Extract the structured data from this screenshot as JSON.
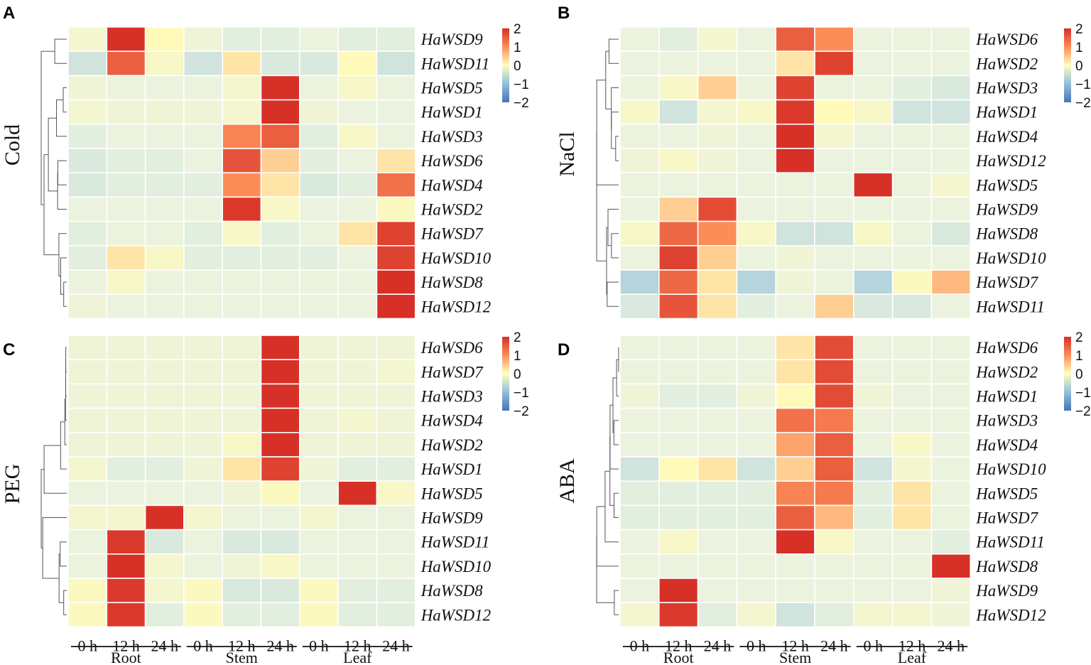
{
  "chart_data": [
    {
      "type": "heatmap",
      "panel": "A",
      "condition": "Cold",
      "rows": [
        "HaWSD9",
        "HaWSD11",
        "HaWSD5",
        "HaWSD1",
        "HaWSD3",
        "HaWSD6",
        "HaWSD4",
        "HaWSD2",
        "HaWSD7",
        "HaWSD10",
        "HaWSD8",
        "HaWSD12"
      ],
      "columns": [
        "0 h",
        "12 h",
        "24 h",
        "0 h",
        "12 h",
        "24 h",
        "0 h",
        "12 h",
        "24 h"
      ],
      "groups": [
        "Root",
        "Stem",
        "Leaf"
      ],
      "colorbar": {
        "ticks": [
          "2",
          "1",
          "0",
          "−1",
          "−2"
        ],
        "range": [
          -2,
          2
        ]
      },
      "values": [
        [
          0.2,
          2.0,
          0.5,
          0.1,
          -0.1,
          -0.1,
          0.0,
          -0.1,
          -0.1
        ],
        [
          -0.3,
          1.5,
          0.3,
          -0.3,
          0.6,
          -0.2,
          -0.2,
          0.5,
          -0.3
        ],
        [
          0.1,
          0.0,
          0.0,
          0.0,
          0.2,
          2.0,
          0.0,
          0.3,
          0.0
        ],
        [
          0.2,
          0.1,
          0.1,
          0.1,
          0.2,
          2.0,
          0.1,
          0.0,
          0.0
        ],
        [
          -0.1,
          0.0,
          0.0,
          0.0,
          1.1,
          1.5,
          -0.1,
          0.3,
          0.0
        ],
        [
          -0.2,
          -0.1,
          -0.1,
          0.0,
          1.6,
          0.7,
          -0.1,
          0.0,
          0.6
        ],
        [
          -0.2,
          -0.1,
          -0.1,
          -0.1,
          1.0,
          0.6,
          -0.2,
          -0.1,
          1.3
        ],
        [
          0.0,
          0.0,
          0.0,
          0.0,
          1.9,
          0.3,
          0.0,
          0.0,
          0.4
        ],
        [
          -0.1,
          0.0,
          0.0,
          -0.1,
          0.3,
          -0.1,
          0.0,
          0.6,
          1.8
        ],
        [
          -0.1,
          0.6,
          0.3,
          -0.1,
          -0.1,
          -0.1,
          -0.1,
          0.0,
          1.8
        ],
        [
          0.0,
          0.3,
          0.0,
          0.0,
          0.0,
          0.0,
          0.0,
          0.0,
          2.0
        ],
        [
          0.1,
          0.0,
          0.0,
          0.0,
          0.0,
          0.0,
          0.0,
          0.0,
          2.0
        ]
      ]
    },
    {
      "type": "heatmap",
      "panel": "B",
      "condition": "NaCl",
      "rows": [
        "HaWSD6",
        "HaWSD2",
        "HaWSD3",
        "HaWSD1",
        "HaWSD4",
        "HaWSD12",
        "HaWSD5",
        "HaWSD9",
        "HaWSD8",
        "HaWSD10",
        "HaWSD7",
        "HaWSD11"
      ],
      "columns": [
        "0 h",
        "12 h",
        "24 h",
        "0 h",
        "12 h",
        "24 h",
        "0 h",
        "12 h",
        "24 h"
      ],
      "groups": [
        "Root",
        "Stem",
        "Leaf"
      ],
      "colorbar": {
        "ticks": [
          "2",
          "1",
          "0",
          "−1",
          "−2"
        ],
        "range": [
          -2,
          2
        ]
      },
      "values": [
        [
          0.0,
          -0.1,
          0.2,
          0.0,
          1.5,
          1.0,
          0.0,
          0.0,
          0.0
        ],
        [
          0.0,
          0.0,
          0.0,
          0.0,
          0.6,
          1.8,
          0.0,
          0.0,
          0.0
        ],
        [
          0.0,
          0.3,
          0.7,
          0.0,
          1.8,
          0.0,
          0.0,
          -0.1,
          -0.2
        ],
        [
          0.3,
          -0.3,
          0.2,
          0.3,
          1.9,
          0.5,
          0.3,
          -0.3,
          -0.3
        ],
        [
          0.0,
          0.0,
          0.1,
          0.0,
          2.0,
          0.2,
          0.0,
          0.0,
          0.0
        ],
        [
          0.1,
          0.3,
          0.1,
          0.0,
          2.0,
          0.0,
          0.0,
          0.0,
          0.0
        ],
        [
          0.0,
          0.0,
          0.0,
          0.0,
          0.0,
          0.0,
          2.0,
          0.0,
          0.2
        ],
        [
          0.0,
          0.7,
          1.7,
          0.0,
          0.0,
          0.0,
          0.0,
          0.0,
          0.0
        ],
        [
          0.3,
          1.4,
          1.0,
          0.3,
          -0.3,
          -0.3,
          0.3,
          0.0,
          -0.2
        ],
        [
          0.0,
          1.8,
          0.7,
          0.0,
          0.1,
          0.0,
          0.0,
          0.0,
          0.0
        ],
        [
          -0.6,
          1.4,
          0.6,
          -0.6,
          0.1,
          0.0,
          -0.6,
          0.4,
          0.8
        ],
        [
          -0.2,
          1.6,
          0.6,
          -0.1,
          0.0,
          0.7,
          -0.2,
          -0.2,
          0.0
        ]
      ]
    },
    {
      "type": "heatmap",
      "panel": "C",
      "condition": "PEG",
      "rows": [
        "HaWSD6",
        "HaWSD7",
        "HaWSD3",
        "HaWSD4",
        "HaWSD2",
        "HaWSD1",
        "HaWSD5",
        "HaWSD9",
        "HaWSD11",
        "HaWSD10",
        "HaWSD8",
        "HaWSD12"
      ],
      "columns": [
        "0 h",
        "12 h",
        "24 h",
        "0 h",
        "12 h",
        "24 h",
        "0 h",
        "12 h",
        "24 h"
      ],
      "groups": [
        "Root",
        "Stem",
        "Leaf"
      ],
      "colorbar": {
        "ticks": [
          "2",
          "1",
          "0",
          "−1",
          "−2"
        ],
        "range": [
          -2,
          2
        ]
      },
      "values": [
        [
          0.1,
          0.1,
          0.1,
          0.1,
          0.1,
          2.0,
          0.1,
          0.1,
          0.1
        ],
        [
          0.1,
          0.1,
          0.1,
          0.1,
          0.1,
          2.0,
          0.1,
          0.1,
          0.2
        ],
        [
          0.1,
          0.1,
          0.1,
          0.1,
          0.1,
          2.0,
          0.1,
          0.1,
          0.1
        ],
        [
          0.1,
          0.1,
          0.1,
          0.1,
          0.1,
          2.0,
          0.1,
          0.2,
          0.1
        ],
        [
          0.1,
          0.1,
          0.1,
          0.1,
          0.3,
          2.0,
          0.1,
          0.1,
          0.1
        ],
        [
          0.2,
          -0.1,
          -0.1,
          0.1,
          0.6,
          1.8,
          0.1,
          -0.1,
          -0.1
        ],
        [
          0.0,
          0.0,
          0.0,
          0.0,
          0.1,
          0.4,
          0.0,
          2.0,
          0.3
        ],
        [
          0.2,
          0.2,
          2.0,
          0.2,
          0.0,
          0.0,
          0.2,
          0.0,
          0.0
        ],
        [
          0.0,
          1.9,
          -0.2,
          0.0,
          -0.2,
          -0.2,
          0.0,
          0.0,
          0.0
        ],
        [
          0.0,
          2.0,
          0.2,
          0.0,
          0.1,
          0.3,
          0.0,
          0.0,
          0.0
        ],
        [
          0.4,
          1.9,
          0.2,
          0.4,
          -0.2,
          -0.2,
          0.4,
          -0.1,
          -0.1
        ],
        [
          0.4,
          1.9,
          -0.1,
          0.4,
          -0.1,
          -0.1,
          0.4,
          -0.1,
          -0.1
        ]
      ]
    },
    {
      "type": "heatmap",
      "panel": "D",
      "condition": "ABA",
      "rows": [
        "HaWSD6",
        "HaWSD2",
        "HaWSD1",
        "HaWSD3",
        "HaWSD4",
        "HaWSD10",
        "HaWSD5",
        "HaWSD7",
        "HaWSD11",
        "HaWSD8",
        "HaWSD9",
        "HaWSD12"
      ],
      "columns": [
        "0 h",
        "12 h",
        "24 h",
        "0 h",
        "12 h",
        "24 h",
        "0 h",
        "12 h",
        "24 h"
      ],
      "groups": [
        "Root",
        "Stem",
        "Leaf"
      ],
      "colorbar": {
        "ticks": [
          "2",
          "1",
          "0",
          "−1",
          "−2"
        ],
        "range": [
          -2,
          2
        ]
      },
      "values": [
        [
          0.0,
          0.0,
          0.0,
          0.0,
          0.6,
          1.7,
          0.0,
          0.0,
          0.0
        ],
        [
          0.0,
          0.0,
          0.0,
          0.0,
          0.6,
          1.7,
          0.0,
          0.0,
          0.0
        ],
        [
          0.1,
          -0.1,
          -0.1,
          0.1,
          0.5,
          1.7,
          0.1,
          0.0,
          0.0
        ],
        [
          0.0,
          0.0,
          0.0,
          0.0,
          1.3,
          1.2,
          0.0,
          0.0,
          0.0
        ],
        [
          0.0,
          0.0,
          0.0,
          0.0,
          0.9,
          1.5,
          0.0,
          0.3,
          0.0
        ],
        [
          -0.3,
          0.5,
          0.6,
          -0.3,
          0.7,
          1.5,
          -0.3,
          0.2,
          0.0
        ],
        [
          -0.1,
          -0.1,
          -0.1,
          -0.1,
          1.1,
          1.2,
          -0.1,
          0.6,
          0.0
        ],
        [
          -0.1,
          -0.1,
          -0.1,
          -0.1,
          1.5,
          0.8,
          -0.1,
          0.6,
          0.0
        ],
        [
          0.0,
          0.3,
          0.0,
          0.0,
          2.0,
          0.3,
          0.0,
          0.0,
          -0.1
        ],
        [
          0.0,
          0.0,
          0.0,
          0.0,
          0.0,
          0.0,
          0.0,
          0.0,
          2.0
        ],
        [
          0.0,
          2.0,
          0.0,
          0.0,
          0.0,
          0.0,
          0.0,
          0.0,
          0.1
        ],
        [
          0.2,
          1.9,
          -0.1,
          0.2,
          -0.3,
          -0.1,
          0.2,
          0.2,
          0.1
        ]
      ]
    }
  ]
}
